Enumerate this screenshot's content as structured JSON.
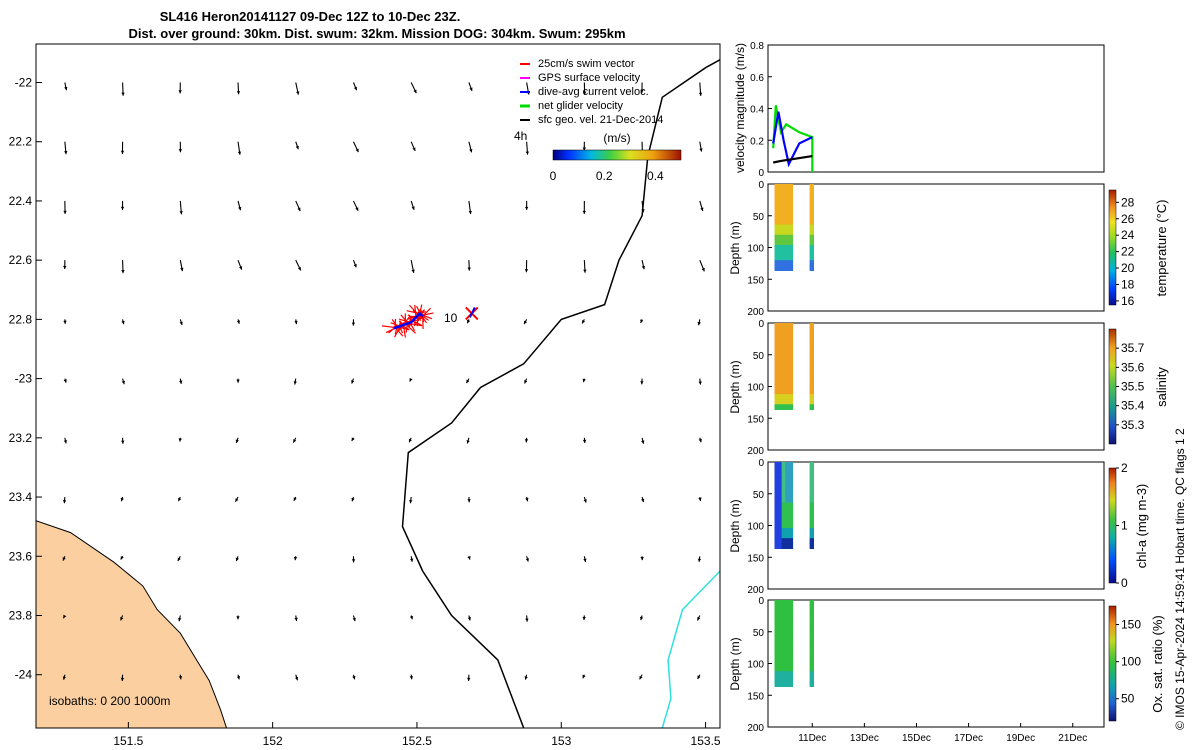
{
  "chart_data": [
    {
      "type": "map",
      "title_line1": "SL416 Heron20141127 09-Dec 12Z to 10-Dec 23Z.",
      "title_line2": "Dist. over ground: 30km. Dist. swum: 32km. Mission DOG: 304km. Swum: 295km",
      "xlim": [
        151.18,
        153.55
      ],
      "ylim": [
        -24.18,
        -21.87
      ],
      "x_ticks": [
        151.5,
        152,
        152.5,
        153,
        153.5
      ],
      "x_ticklabels": [
        "151.5",
        "152",
        "152.5",
        "153",
        "153.5"
      ],
      "y_ticks": [
        -22,
        -22.2,
        -22.4,
        -22.6,
        -22.8,
        -23,
        -23.2,
        -23.4,
        -23.6,
        -23.8,
        -24
      ],
      "y_ticklabels": [
        "-22",
        "22.2",
        "22.4",
        "22.6",
        "22.8",
        "-23",
        "23.2",
        "23.4",
        "23.6",
        "23.8",
        "-24"
      ],
      "legend": [
        "25cm/s swim vector",
        "GPS surface velocity",
        "dive-avg current veloc.",
        "net glider velocity",
        "sfc geo. vel. 21-Dec-2014"
      ],
      "legend_colors": [
        "#ff0000",
        "#ff00ff",
        "#0000ff",
        "#00dd00",
        "#000000"
      ],
      "colorbar_title": "(m/s)",
      "colorbar_ticks": [
        0,
        0.2,
        0.4
      ],
      "colorbar_ticklabels": [
        "0",
        "0.2",
        "0.4"
      ],
      "colorbar_range": [
        0,
        0.5
      ],
      "annotations": {
        "hours": "4h",
        "day_label": "10",
        "isobaths": "isobaths: 0  200  1000m"
      },
      "vector_columns_lon": [
        151.28,
        151.48,
        151.68,
        151.88,
        152.08,
        152.28,
        152.48,
        152.68,
        152.88,
        153.08,
        153.28,
        153.48
      ],
      "vector_rows_lat": [
        -22.0,
        -22.2,
        -22.4,
        -22.6,
        -22.8,
        -23.0,
        -23.2,
        -23.4,
        -23.6,
        -23.8,
        -24.0
      ],
      "glider_track": [
        [
          152.42,
          -22.83
        ],
        [
          152.45,
          -22.82
        ],
        [
          152.48,
          -22.81
        ],
        [
          152.51,
          -22.78
        ],
        [
          152.52,
          -22.79
        ]
      ],
      "final_position": [
        152.69,
        -22.78
      ],
      "coastline": [
        [
          151.18,
          -23.48
        ],
        [
          151.3,
          -23.52
        ],
        [
          151.45,
          -23.62
        ],
        [
          151.55,
          -23.7
        ],
        [
          151.6,
          -23.78
        ],
        [
          151.68,
          -23.86
        ],
        [
          151.73,
          -23.94
        ],
        [
          151.78,
          -24.02
        ],
        [
          151.82,
          -24.12
        ],
        [
          151.84,
          -24.18
        ],
        [
          151.18,
          -24.18
        ]
      ],
      "isobath_200m": [
        [
          153.63,
          -21.88
        ],
        [
          153.5,
          -21.95
        ],
        [
          153.35,
          -22.05
        ],
        [
          153.3,
          -22.25
        ],
        [
          153.28,
          -22.45
        ],
        [
          153.2,
          -22.6
        ],
        [
          153.15,
          -22.75
        ],
        [
          153.0,
          -22.8
        ],
        [
          152.87,
          -22.95
        ],
        [
          152.72,
          -23.03
        ],
        [
          152.62,
          -23.15
        ],
        [
          152.47,
          -23.25
        ],
        [
          152.45,
          -23.5
        ],
        [
          152.52,
          -23.65
        ],
        [
          152.62,
          -23.8
        ],
        [
          152.78,
          -23.95
        ],
        [
          152.87,
          -24.18
        ]
      ],
      "isobath_1000m": [
        [
          153.55,
          -23.65
        ],
        [
          153.42,
          -23.78
        ],
        [
          153.37,
          -23.95
        ],
        [
          153.38,
          -24.08
        ],
        [
          153.35,
          -24.18
        ]
      ]
    },
    {
      "type": "line",
      "ylabel": "velocity magnitude (m/s)",
      "ylim": [
        0,
        0.8
      ],
      "y_ticks": [
        0,
        0.2,
        0.4,
        0.6,
        0.8
      ],
      "series": [
        {
          "color": "#00dd00",
          "x": [
            9.5,
            9.6,
            9.8,
            10.0,
            10.5,
            11.0,
            11.0
          ],
          "values": [
            0.15,
            0.42,
            0.25,
            0.3,
            0.25,
            0.22,
            0.0
          ]
        },
        {
          "color": "#0000ff",
          "x": [
            9.5,
            9.7,
            9.9,
            10.1,
            10.5,
            11.0
          ],
          "values": [
            0.18,
            0.38,
            0.2,
            0.05,
            0.18,
            0.22
          ]
        },
        {
          "color": "#000000",
          "x": [
            9.5,
            9.8,
            10.2,
            10.6,
            11.0
          ],
          "values": [
            0.06,
            0.07,
            0.08,
            0.09,
            0.1
          ]
        }
      ]
    },
    {
      "type": "scatter",
      "ylabel": "Depth (m)",
      "ylim": [
        200,
        0
      ],
      "y_ticks": [
        0,
        50,
        100,
        150,
        200
      ],
      "colorbar_label": "temperature (°C)",
      "colorbar_range": [
        15.5,
        29.5
      ],
      "colorbar_ticks": [
        16,
        18,
        20,
        22,
        24,
        26,
        28
      ],
      "profile_groups": [
        {
          "x_from": 9.55,
          "x_to": 10.25,
          "max_depth": 130
        },
        {
          "x_from": 10.9,
          "x_to": 11.05,
          "max_depth": 135
        }
      ]
    },
    {
      "type": "scatter",
      "ylabel": "Depth (m)",
      "ylim": [
        200,
        0
      ],
      "y_ticks": [
        0,
        50,
        100,
        150,
        200
      ],
      "colorbar_label": "salinity",
      "colorbar_range": [
        35.2,
        35.8
      ],
      "colorbar_ticks": [
        35.3,
        35.4,
        35.5,
        35.6,
        35.7
      ],
      "profile_groups": [
        {
          "x_from": 9.55,
          "x_to": 10.25,
          "max_depth": 130
        },
        {
          "x_from": 10.9,
          "x_to": 11.05,
          "max_depth": 135
        }
      ]
    },
    {
      "type": "scatter",
      "ylabel": "Depth (m)",
      "ylim": [
        200,
        0
      ],
      "y_ticks": [
        0,
        50,
        100,
        150,
        200
      ],
      "colorbar_label": "chl-a (mg m-3)",
      "colorbar_range": [
        0,
        2
      ],
      "colorbar_ticks": [
        0,
        1,
        2
      ],
      "profile_groups": [
        {
          "x_from": 9.55,
          "x_to": 10.25,
          "max_depth": 130
        },
        {
          "x_from": 10.9,
          "x_to": 11.05,
          "max_depth": 135
        }
      ]
    },
    {
      "type": "scatter",
      "ylabel": "Depth (m)",
      "ylim": [
        200,
        0
      ],
      "y_ticks": [
        0,
        50,
        100,
        150,
        200
      ],
      "x_ticklabels": [
        "11Dec",
        "13Dec",
        "15Dec",
        "17Dec",
        "19Dec",
        "21Dec"
      ],
      "x_ticks_day": [
        11,
        13,
        15,
        17,
        19,
        21
      ],
      "xlim_day": [
        9.3,
        22.2
      ],
      "colorbar_label": "Ox. sat. ratio (%)",
      "colorbar_range": [
        20,
        175
      ],
      "colorbar_ticks": [
        50,
        100,
        150
      ],
      "profile_groups": [
        {
          "x_from": 9.55,
          "x_to": 10.25,
          "max_depth": 130
        },
        {
          "x_from": 10.9,
          "x_to": 11.05,
          "max_depth": 135
        }
      ]
    }
  ],
  "footer": "© IMOS 15-Apr-2024 14:59:41 Hobart time. QC flags 1  2"
}
